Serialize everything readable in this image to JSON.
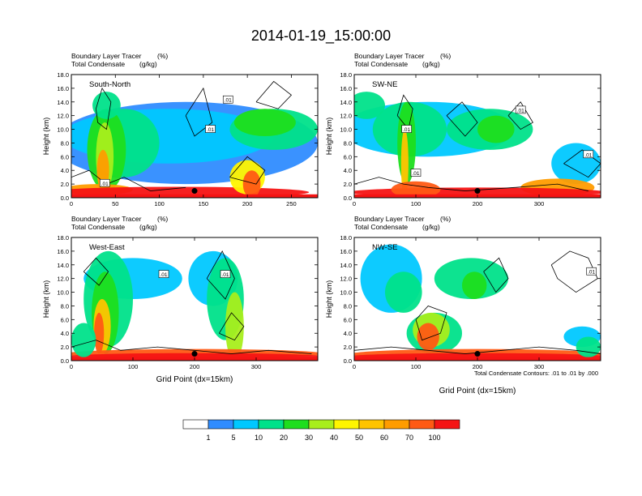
{
  "figure_title": "2014-01-19_15:00:00",
  "footnote": "Total Condensate Contours: .01 to .01 by .000",
  "chart_data": [
    {
      "type": "heatmap",
      "panel": "top-left",
      "title": "South-North",
      "left_title_1": "Boundary Layer Tracer",
      "left_title_2": "Total Condensate",
      "units_1": "(%)",
      "units_2": "(g/kg)",
      "xlabel": "",
      "ylabel": "Height (km)",
      "xlim": [
        0,
        280
      ],
      "ylim": [
        0,
        18
      ],
      "xticks": [
        0,
        50,
        100,
        150,
        200,
        250
      ],
      "yticks": [
        "0.0",
        "2.0",
        "4.0",
        "6.0",
        "8.0",
        "10.0",
        "12.0",
        "14.0",
        "16.0",
        "18.0"
      ],
      "contour_labels": [
        ".01",
        ".01",
        ".01"
      ],
      "marker_x": 140,
      "marker_y": 1.0
    },
    {
      "type": "heatmap",
      "panel": "top-right",
      "title": "SW-NE",
      "left_title_1": "Boundary Layer Tracer",
      "left_title_2": "Total Condensate",
      "units_1": "(%)",
      "units_2": "(g/kg)",
      "xlabel": "",
      "ylabel": "Height (km)",
      "xlim": [
        0,
        400
      ],
      "ylim": [
        0,
        18
      ],
      "xticks": [
        0,
        100,
        200,
        300
      ],
      "yticks": [
        "0.0",
        "2.0",
        "4.0",
        "6.0",
        "8.0",
        "10.0",
        "12.0",
        "14.0",
        "16.0",
        "18.0"
      ],
      "contour_labels": [
        ".01",
        ".01",
        ".01",
        ".01"
      ],
      "marker_x": 200,
      "marker_y": 1.0
    },
    {
      "type": "heatmap",
      "panel": "bottom-left",
      "title": "West-East",
      "left_title_1": "Boundary Layer Tracer",
      "left_title_2": "Total Condensate",
      "units_1": "(%)",
      "units_2": "(g/kg)",
      "xlabel": "Grid Point (dx=15km)",
      "ylabel": "Height (km)",
      "xlim": [
        0,
        400
      ],
      "ylim": [
        0,
        18
      ],
      "xticks": [
        0,
        100,
        200,
        300
      ],
      "yticks": [
        "0.0",
        "2.0",
        "4.0",
        "6.0",
        "8.0",
        "10.0",
        "12.0",
        "14.0",
        "16.0",
        "18.0"
      ],
      "contour_labels": [
        ".01",
        ".01"
      ],
      "marker_x": 200,
      "marker_y": 1.0
    },
    {
      "type": "heatmap",
      "panel": "bottom-right",
      "title": "NW-SE",
      "left_title_1": "Boundary Layer Tracer",
      "left_title_2": "Total Condensate",
      "units_1": "(%)",
      "units_2": "(g/kg)",
      "xlabel": "Grid Point (dx=15km)",
      "ylabel": "Height (km)",
      "xlim": [
        0,
        400
      ],
      "ylim": [
        0,
        18
      ],
      "xticks": [
        0,
        100,
        200,
        300
      ],
      "yticks": [
        "0.0",
        "2.0",
        "4.0",
        "6.0",
        "8.0",
        "10.0",
        "12.0",
        "14.0",
        "16.0",
        "18.0"
      ],
      "contour_labels": [
        ".01"
      ],
      "marker_x": 200,
      "marker_y": 1.0
    }
  ],
  "colorbar": {
    "labels": [
      "1",
      "5",
      "10",
      "20",
      "30",
      "40",
      "50",
      "60",
      "70",
      "100"
    ],
    "colors": [
      "#ffffff",
      "#2f8cff",
      "#00c8ff",
      "#00e28a",
      "#1ede1e",
      "#a8ee1c",
      "#fff500",
      "#ffc400",
      "#ff9c00",
      "#ff5a14",
      "#f51414"
    ]
  }
}
